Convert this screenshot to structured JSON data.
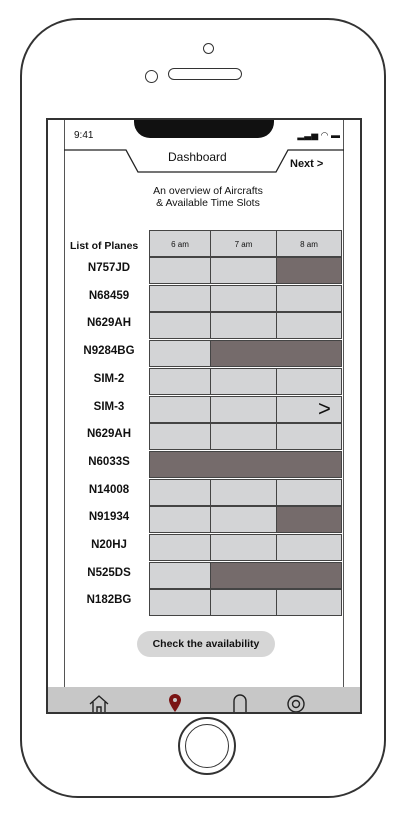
{
  "status": {
    "time": "9:41",
    "icons": "▂▃▅ ◠ ▬"
  },
  "header": {
    "title": "Dashboard",
    "next_label": "Next >"
  },
  "subtitle": "An overview of Aircrafts\n& Available Time Slots",
  "grid": {
    "row_header": "List of Planes",
    "time_slots": [
      "6 am",
      "7 am",
      "8 am"
    ],
    "planes": [
      "N757JD",
      "N68459",
      "N629AH",
      "N9284BG",
      "SIM-2",
      "SIM-3",
      "N629AH",
      "N6033S",
      "N14008",
      "N91934",
      "N20HJ",
      "N525DS",
      "N182BG"
    ],
    "booked": [
      [
        false,
        false,
        true
      ],
      [
        false,
        false,
        false
      ],
      [
        false,
        false,
        false
      ],
      [
        false,
        true,
        true
      ],
      [
        false,
        false,
        false
      ],
      [
        false,
        false,
        false
      ],
      [
        false,
        false,
        false
      ],
      [
        true,
        true,
        true
      ],
      [
        false,
        false,
        false
      ],
      [
        false,
        false,
        true
      ],
      [
        false,
        false,
        false
      ],
      [
        false,
        true,
        true
      ],
      [
        false,
        false,
        false
      ]
    ],
    "scroll_arrow": ">"
  },
  "check_button": "Check the availability",
  "tabs": [
    {
      "icon": "home-icon",
      "glyph": "⌂"
    },
    {
      "icon": "location-pin-icon",
      "glyph": "❤"
    },
    {
      "icon": "bell-icon",
      "glyph": "∩"
    },
    {
      "icon": "at-icon",
      "glyph": "@"
    }
  ]
}
